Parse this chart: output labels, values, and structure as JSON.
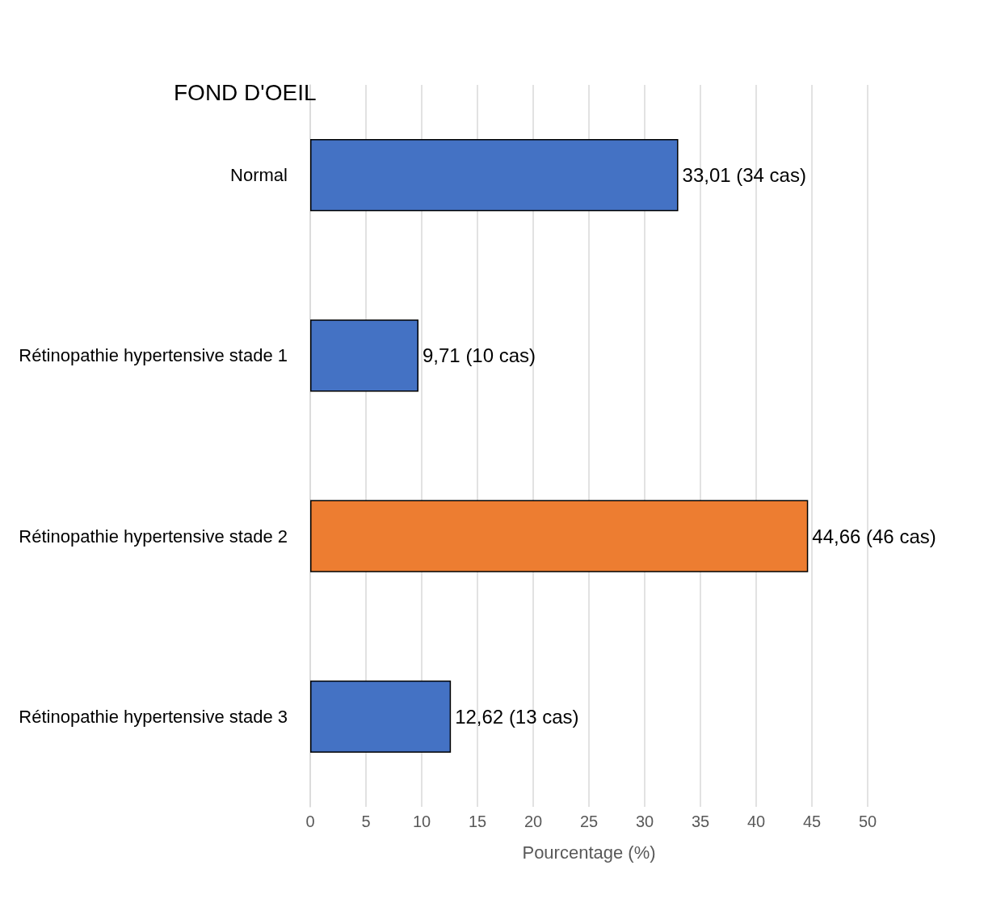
{
  "chart_data": {
    "type": "bar",
    "orientation": "horizontal",
    "title": "FOND D'OEIL",
    "xlabel": "Pourcentage (%)",
    "categories": [
      "Normal",
      "Rétinopathie hypertensive stade 1",
      "Rétinopathie hypertensive stade 2",
      "Rétinopathie hypertensive stade 3"
    ],
    "values": [
      33.01,
      9.71,
      44.66,
      12.62
    ],
    "colors": [
      "#4472c4",
      "#4472c4",
      "#ed7d31",
      "#4472c4"
    ],
    "value_labels": [
      "33,01 (34 cas)",
      "9,71 (10 cas)",
      "44,66 (46 cas)",
      "12,62 (13 cas)"
    ],
    "xlim": [
      0,
      50
    ],
    "xticks": [
      0,
      5,
      10,
      15,
      20,
      25,
      30,
      35,
      40,
      45,
      50
    ],
    "grid": "x"
  }
}
